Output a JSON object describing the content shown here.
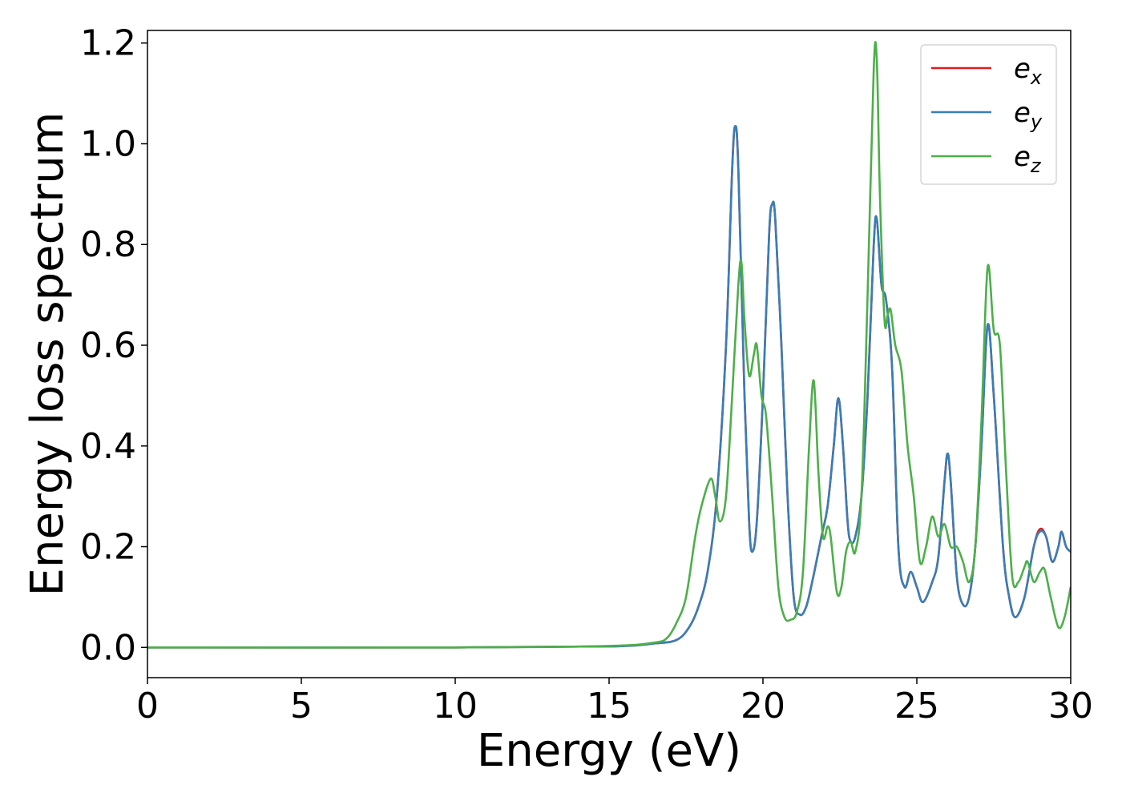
{
  "chart_data": {
    "type": "line",
    "title": "",
    "xlabel": "Energy (eV)",
    "ylabel": "Energy loss spectrum",
    "xlim": [
      0,
      30
    ],
    "ylim": [
      -0.06,
      1.225
    ],
    "xticks": [
      "0",
      "5",
      "10",
      "15",
      "20",
      "25",
      "30"
    ],
    "xtick_values": [
      0,
      5,
      10,
      15,
      20,
      25,
      30
    ],
    "yticks": [
      "0.0",
      "0.2",
      "0.4",
      "0.6",
      "0.8",
      "1.0",
      "1.2"
    ],
    "ytick_values": [
      0.0,
      0.2,
      0.4,
      0.6,
      0.8,
      1.0,
      1.2
    ],
    "grid": false,
    "legend_position": "top-right",
    "series": [
      {
        "name": "e",
        "subscript": "x",
        "color": "#e41a1c",
        "points": [
          [
            0,
            0
          ],
          [
            10,
            0
          ],
          [
            15,
            0.002
          ],
          [
            16.5,
            0.008
          ],
          [
            17.2,
            0.015
          ],
          [
            17.6,
            0.04
          ],
          [
            17.9,
            0.08
          ],
          [
            18.2,
            0.15
          ],
          [
            18.5,
            0.3
          ],
          [
            18.8,
            0.6
          ],
          [
            19.0,
            0.95
          ],
          [
            19.1,
            1.035
          ],
          [
            19.2,
            0.95
          ],
          [
            19.4,
            0.5
          ],
          [
            19.55,
            0.25
          ],
          [
            19.65,
            0.19
          ],
          [
            19.8,
            0.25
          ],
          [
            20.0,
            0.5
          ],
          [
            20.2,
            0.82
          ],
          [
            20.3,
            0.88
          ],
          [
            20.4,
            0.85
          ],
          [
            20.6,
            0.6
          ],
          [
            20.8,
            0.3
          ],
          [
            21.0,
            0.1
          ],
          [
            21.2,
            0.065
          ],
          [
            21.4,
            0.08
          ],
          [
            21.6,
            0.13
          ],
          [
            21.9,
            0.22
          ],
          [
            22.1,
            0.28
          ],
          [
            22.3,
            0.4
          ],
          [
            22.45,
            0.495
          ],
          [
            22.6,
            0.4
          ],
          [
            22.75,
            0.25
          ],
          [
            22.85,
            0.21
          ],
          [
            23.0,
            0.22
          ],
          [
            23.2,
            0.3
          ],
          [
            23.4,
            0.5
          ],
          [
            23.6,
            0.8
          ],
          [
            23.7,
            0.85
          ],
          [
            23.85,
            0.72
          ],
          [
            24.0,
            0.69
          ],
          [
            24.2,
            0.55
          ],
          [
            24.4,
            0.2
          ],
          [
            24.6,
            0.12
          ],
          [
            24.8,
            0.15
          ],
          [
            25.0,
            0.12
          ],
          [
            25.2,
            0.09
          ],
          [
            25.5,
            0.13
          ],
          [
            25.7,
            0.18
          ],
          [
            25.9,
            0.33
          ],
          [
            26.0,
            0.385
          ],
          [
            26.1,
            0.33
          ],
          [
            26.3,
            0.14
          ],
          [
            26.5,
            0.085
          ],
          [
            26.7,
            0.1
          ],
          [
            26.9,
            0.2
          ],
          [
            27.1,
            0.4
          ],
          [
            27.3,
            0.64
          ],
          [
            27.5,
            0.5
          ],
          [
            27.8,
            0.2
          ],
          [
            28.0,
            0.1
          ],
          [
            28.2,
            0.06
          ],
          [
            28.5,
            0.1
          ],
          [
            28.8,
            0.2
          ],
          [
            29.0,
            0.235
          ],
          [
            29.2,
            0.22
          ],
          [
            29.4,
            0.17
          ],
          [
            29.6,
            0.2
          ],
          [
            29.7,
            0.23
          ],
          [
            29.85,
            0.2
          ],
          [
            30.0,
            0.19
          ]
        ]
      },
      {
        "name": "e",
        "subscript": "y",
        "color": "#377eb8",
        "points": [
          [
            0,
            0
          ],
          [
            10,
            0
          ],
          [
            15,
            0.002
          ],
          [
            16.5,
            0.008
          ],
          [
            17.2,
            0.015
          ],
          [
            17.6,
            0.04
          ],
          [
            17.9,
            0.08
          ],
          [
            18.2,
            0.15
          ],
          [
            18.5,
            0.3
          ],
          [
            18.8,
            0.6
          ],
          [
            19.0,
            0.95
          ],
          [
            19.1,
            1.035
          ],
          [
            19.2,
            0.95
          ],
          [
            19.4,
            0.5
          ],
          [
            19.55,
            0.25
          ],
          [
            19.65,
            0.19
          ],
          [
            19.8,
            0.25
          ],
          [
            20.0,
            0.5
          ],
          [
            20.2,
            0.82
          ],
          [
            20.3,
            0.88
          ],
          [
            20.4,
            0.85
          ],
          [
            20.6,
            0.6
          ],
          [
            20.8,
            0.3
          ],
          [
            21.0,
            0.1
          ],
          [
            21.2,
            0.065
          ],
          [
            21.4,
            0.08
          ],
          [
            21.6,
            0.13
          ],
          [
            21.9,
            0.22
          ],
          [
            22.1,
            0.28
          ],
          [
            22.3,
            0.4
          ],
          [
            22.45,
            0.495
          ],
          [
            22.6,
            0.4
          ],
          [
            22.75,
            0.25
          ],
          [
            22.85,
            0.21
          ],
          [
            23.0,
            0.22
          ],
          [
            23.2,
            0.3
          ],
          [
            23.4,
            0.5
          ],
          [
            23.6,
            0.8
          ],
          [
            23.7,
            0.85
          ],
          [
            23.85,
            0.72
          ],
          [
            24.0,
            0.69
          ],
          [
            24.2,
            0.55
          ],
          [
            24.4,
            0.2
          ],
          [
            24.6,
            0.12
          ],
          [
            24.8,
            0.15
          ],
          [
            25.0,
            0.12
          ],
          [
            25.2,
            0.09
          ],
          [
            25.5,
            0.13
          ],
          [
            25.7,
            0.18
          ],
          [
            25.9,
            0.33
          ],
          [
            26.0,
            0.385
          ],
          [
            26.1,
            0.33
          ],
          [
            26.3,
            0.14
          ],
          [
            26.5,
            0.085
          ],
          [
            26.7,
            0.1
          ],
          [
            26.9,
            0.2
          ],
          [
            27.1,
            0.4
          ],
          [
            27.3,
            0.64
          ],
          [
            27.5,
            0.5
          ],
          [
            27.8,
            0.2
          ],
          [
            28.0,
            0.1
          ],
          [
            28.2,
            0.06
          ],
          [
            28.5,
            0.1
          ],
          [
            28.8,
            0.2
          ],
          [
            29.0,
            0.23
          ],
          [
            29.2,
            0.22
          ],
          [
            29.4,
            0.17
          ],
          [
            29.6,
            0.2
          ],
          [
            29.7,
            0.23
          ],
          [
            29.85,
            0.2
          ],
          [
            30.0,
            0.19
          ]
        ]
      },
      {
        "name": "e",
        "subscript": "z",
        "color": "#4daf4a",
        "points": [
          [
            0,
            0
          ],
          [
            10,
            0
          ],
          [
            15,
            0.003
          ],
          [
            16.5,
            0.01
          ],
          [
            16.9,
            0.02
          ],
          [
            17.2,
            0.05
          ],
          [
            17.5,
            0.1
          ],
          [
            17.8,
            0.22
          ],
          [
            18.0,
            0.28
          ],
          [
            18.3,
            0.335
          ],
          [
            18.45,
            0.3
          ],
          [
            18.6,
            0.25
          ],
          [
            18.8,
            0.3
          ],
          [
            19.0,
            0.5
          ],
          [
            19.2,
            0.72
          ],
          [
            19.3,
            0.765
          ],
          [
            19.4,
            0.65
          ],
          [
            19.55,
            0.54
          ],
          [
            19.7,
            0.58
          ],
          [
            19.8,
            0.6
          ],
          [
            19.95,
            0.5
          ],
          [
            20.1,
            0.46
          ],
          [
            20.3,
            0.3
          ],
          [
            20.5,
            0.12
          ],
          [
            20.7,
            0.06
          ],
          [
            20.9,
            0.055
          ],
          [
            21.1,
            0.07
          ],
          [
            21.3,
            0.15
          ],
          [
            21.5,
            0.4
          ],
          [
            21.65,
            0.53
          ],
          [
            21.8,
            0.35
          ],
          [
            21.95,
            0.22
          ],
          [
            22.1,
            0.24
          ],
          [
            22.2,
            0.22
          ],
          [
            22.4,
            0.11
          ],
          [
            22.55,
            0.12
          ],
          [
            22.7,
            0.19
          ],
          [
            22.85,
            0.21
          ],
          [
            23.0,
            0.19
          ],
          [
            23.2,
            0.3
          ],
          [
            23.4,
            0.7
          ],
          [
            23.6,
            1.15
          ],
          [
            23.7,
            1.165
          ],
          [
            23.8,
            0.9
          ],
          [
            23.95,
            0.65
          ],
          [
            24.05,
            0.66
          ],
          [
            24.15,
            0.67
          ],
          [
            24.3,
            0.6
          ],
          [
            24.5,
            0.55
          ],
          [
            24.7,
            0.4
          ],
          [
            24.9,
            0.3
          ],
          [
            25.1,
            0.17
          ],
          [
            25.3,
            0.2
          ],
          [
            25.5,
            0.26
          ],
          [
            25.7,
            0.22
          ],
          [
            25.9,
            0.245
          ],
          [
            26.1,
            0.2
          ],
          [
            26.3,
            0.2
          ],
          [
            26.5,
            0.17
          ],
          [
            26.7,
            0.13
          ],
          [
            26.9,
            0.2
          ],
          [
            27.1,
            0.45
          ],
          [
            27.3,
            0.755
          ],
          [
            27.5,
            0.63
          ],
          [
            27.7,
            0.6
          ],
          [
            27.9,
            0.35
          ],
          [
            28.1,
            0.14
          ],
          [
            28.3,
            0.13
          ],
          [
            28.5,
            0.16
          ],
          [
            28.6,
            0.17
          ],
          [
            28.8,
            0.13
          ],
          [
            29.0,
            0.15
          ],
          [
            29.15,
            0.155
          ],
          [
            29.35,
            0.1
          ],
          [
            29.6,
            0.04
          ],
          [
            29.8,
            0.06
          ],
          [
            30.0,
            0.12
          ]
        ]
      }
    ]
  }
}
